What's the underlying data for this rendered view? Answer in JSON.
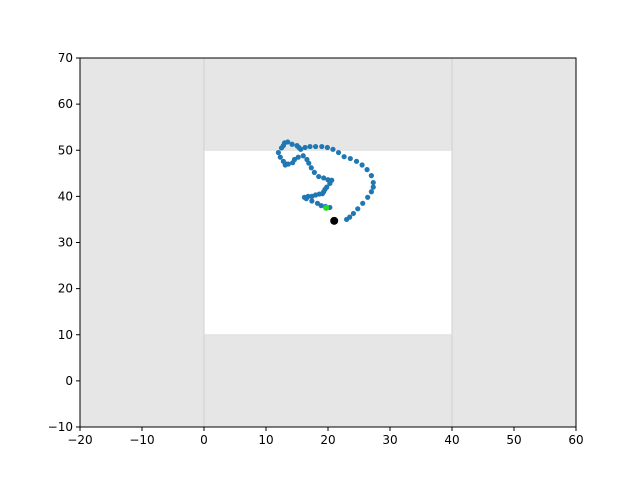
{
  "chart_data": {
    "type": "scatter",
    "title": "",
    "xlabel": "",
    "ylabel": "",
    "xlim": [
      -20,
      60
    ],
    "ylim": [
      -10,
      70
    ],
    "xticks": [
      -20,
      -10,
      0,
      10,
      20,
      30,
      40,
      50,
      60
    ],
    "yticks": [
      -10,
      0,
      10,
      20,
      30,
      40,
      50,
      60,
      70
    ],
    "xtick_labels": [
      "−20",
      "−10",
      "0",
      "10",
      "20",
      "30",
      "40",
      "50",
      "60"
    ],
    "ytick_labels": [
      "−10",
      "0",
      "10",
      "20",
      "30",
      "40",
      "50",
      "60",
      "70"
    ],
    "grid": false,
    "colors": {
      "obstacle": "#e6e6e6",
      "free_space": "#ffffff",
      "trajectory": "#1f77b4",
      "start": "#000000",
      "goal": "#22dd22"
    },
    "free_region": {
      "x": [
        0,
        40
      ],
      "y": [
        10,
        50
      ]
    },
    "obstacle_regions": [
      {
        "x": [
          -20,
          0
        ],
        "y": [
          -10,
          70
        ]
      },
      {
        "x": [
          40,
          60
        ],
        "y": [
          -10,
          70
        ]
      },
      {
        "x": [
          0,
          40
        ],
        "y": [
          50,
          70
        ]
      },
      {
        "x": [
          0,
          40
        ],
        "y": [
          -10,
          10
        ]
      }
    ],
    "trajectory": {
      "x": [
        23.0,
        23.5,
        24.1,
        24.8,
        25.6,
        26.4,
        27.0,
        27.3,
        27.3,
        27.0,
        26.3,
        25.5,
        24.6,
        23.6,
        22.6,
        21.7,
        20.8,
        19.9,
        19.0,
        18.0,
        17.1,
        16.3,
        15.6,
        15.3,
        15.0,
        14.2,
        13.5,
        13.0,
        12.8,
        12.5,
        12.0,
        12.3,
        12.8,
        13.3,
        13.1,
        13.6,
        14.3,
        14.6,
        15.2,
        16.0,
        16.6,
        16.9,
        17.3,
        17.8,
        18.5,
        19.3,
        20.0,
        20.6,
        20.3,
        19.8,
        19.5,
        19.3,
        19.1,
        18.6,
        18.0,
        17.4,
        16.8,
        16.2,
        16.5,
        17.4,
        18.3,
        18.9,
        19.6,
        20.3,
        19.7
      ],
      "y": [
        35.0,
        35.5,
        36.3,
        37.3,
        38.5,
        39.8,
        41.0,
        42.0,
        43.0,
        44.5,
        45.8,
        46.8,
        47.6,
        48.2,
        48.6,
        49.5,
        50.2,
        50.6,
        50.8,
        50.8,
        50.8,
        50.6,
        50.2,
        50.6,
        51.0,
        51.3,
        51.8,
        51.6,
        51.0,
        50.5,
        49.5,
        48.5,
        47.6,
        47.0,
        46.8,
        47.0,
        47.3,
        48.0,
        48.5,
        48.8,
        48.0,
        47.2,
        46.2,
        45.2,
        44.3,
        44.0,
        43.6,
        43.5,
        42.8,
        42.0,
        41.5,
        41.0,
        40.6,
        40.5,
        40.3,
        40.0,
        40.0,
        39.8,
        39.5,
        39.0,
        38.5,
        38.0,
        37.8,
        37.6,
        37.5
      ]
    },
    "start_point": {
      "x": 21.0,
      "y": 34.7
    },
    "goal_point": {
      "x": 19.7,
      "y": 37.5
    }
  }
}
